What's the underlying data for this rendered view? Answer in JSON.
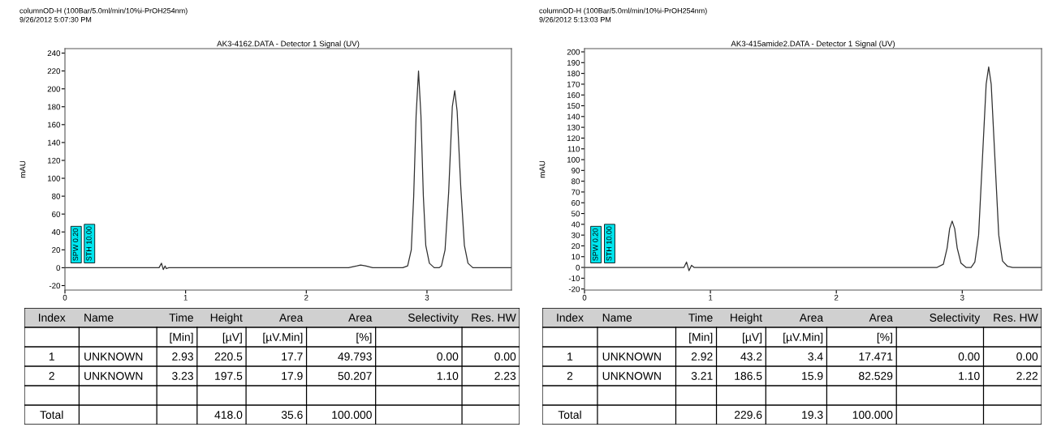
{
  "chart_data": [
    {
      "type": "line",
      "title": "AK3-4162.DATA - Detector 1 Signal (UV)",
      "ylabel": "mAU",
      "annotations": [
        "columnOD-H (100Bar/5.0ml/min/10%i-PrOH254nm)",
        "9/26/2012 5:07:30 PM",
        "SPW 0.20",
        "STH 10.00",
        "Index",
        "Name",
        "Time",
        "Height",
        "Area",
        "Area",
        "Selectivity",
        "Res. HW",
        "[Min]",
        "[µV]",
        "[µV.Min]",
        "[%]",
        "1",
        "UNKNOWN",
        "2.93",
        "220.5",
        "17.7",
        "49.793",
        "0.00",
        "0.00",
        "2",
        "UNKNOWN",
        "3.23",
        "197.5",
        "17.9",
        "50.207",
        "1.10",
        "2.23",
        "Total",
        "418.0",
        "35.6",
        "100.000"
      ],
      "series": [
        {
          "color": "#303030",
          "x": [
            0,
            0.5,
            0.78,
            0.8,
            0.815,
            0.83,
            0.84,
            0.86,
            1.5,
            2.35,
            2.42,
            2.45,
            2.49,
            2.55,
            2.8,
            2.84,
            2.87,
            2.89,
            2.91,
            2.93,
            2.95,
            2.97,
            2.99,
            3.02,
            3.06,
            3.1,
            3.12,
            3.15,
            3.18,
            3.21,
            3.23,
            3.25,
            3.28,
            3.31,
            3.34,
            3.38,
            3.45,
            3.7
          ],
          "values": [
            0,
            0,
            0,
            5,
            -2,
            2,
            -1,
            0,
            0,
            0,
            2,
            3,
            2,
            0,
            0,
            2,
            20,
            80,
            170,
            220,
            170,
            80,
            25,
            5,
            0,
            0,
            2,
            20,
            85,
            180,
            198,
            175,
            90,
            25,
            5,
            0,
            0,
            0
          ]
        }
      ],
      "xlim": [
        0,
        3.7
      ],
      "ylim": [
        -25,
        245
      ],
      "xticks": [
        0,
        1,
        2,
        3
      ],
      "yticks": [
        -20,
        0,
        20,
        40,
        60,
        80,
        100,
        120,
        140,
        160,
        180,
        200,
        220,
        240
      ],
      "grid": false,
      "legend": false,
      "marker": "none",
      "line_style": "solid"
    },
    {
      "type": "line",
      "title": "AK3-415amide2.DATA - Detector 1 Signal (UV)",
      "ylabel": "mAU",
      "annotations": [
        "columnOD-H (100Bar/5.0ml/min/10%i-PrOH254nm)",
        "9/26/2012 5:13:03 PM",
        "SPW 0.20",
        "STH 10.00",
        "Index",
        "Name",
        "Time",
        "Height",
        "Area",
        "Area",
        "Selectivity",
        "Res. HW",
        "[Min]",
        "[µV]",
        "[µV.Min]",
        "[%]",
        "1",
        "UNKNOWN",
        "2.92",
        "43.2",
        "3.4",
        "17.471",
        "0.00",
        "0.00",
        "2",
        "UNKNOWN",
        "3.21",
        "186.5",
        "15.9",
        "82.529",
        "1.10",
        "2.22",
        "Total",
        "229.6",
        "19.3",
        "100.000"
      ],
      "series": [
        {
          "color": "#303030",
          "x": [
            0,
            0.5,
            0.79,
            0.81,
            0.83,
            0.85,
            0.87,
            1.5,
            2.8,
            2.85,
            2.88,
            2.9,
            2.92,
            2.94,
            2.96,
            2.99,
            3.03,
            3.07,
            3.1,
            3.13,
            3.16,
            3.19,
            3.21,
            3.23,
            3.26,
            3.29,
            3.32,
            3.36,
            3.4,
            3.63
          ],
          "values": [
            0,
            0,
            0,
            5,
            -3,
            2,
            0,
            0,
            0,
            3,
            18,
            36,
            43,
            36,
            18,
            4,
            0,
            0,
            5,
            30,
            100,
            170,
            186,
            170,
            100,
            30,
            6,
            1,
            0,
            0
          ]
        }
      ],
      "xlim": [
        0,
        3.63
      ],
      "ylim": [
        -21,
        203
      ],
      "xticks": [
        0,
        1,
        2,
        3
      ],
      "yticks": [
        -20,
        -10,
        0,
        10,
        20,
        30,
        40,
        50,
        60,
        70,
        80,
        90,
        100,
        110,
        120,
        130,
        140,
        150,
        160,
        170,
        180,
        190,
        200
      ],
      "grid": false,
      "legend": false,
      "marker": "none",
      "line_style": "solid"
    }
  ]
}
